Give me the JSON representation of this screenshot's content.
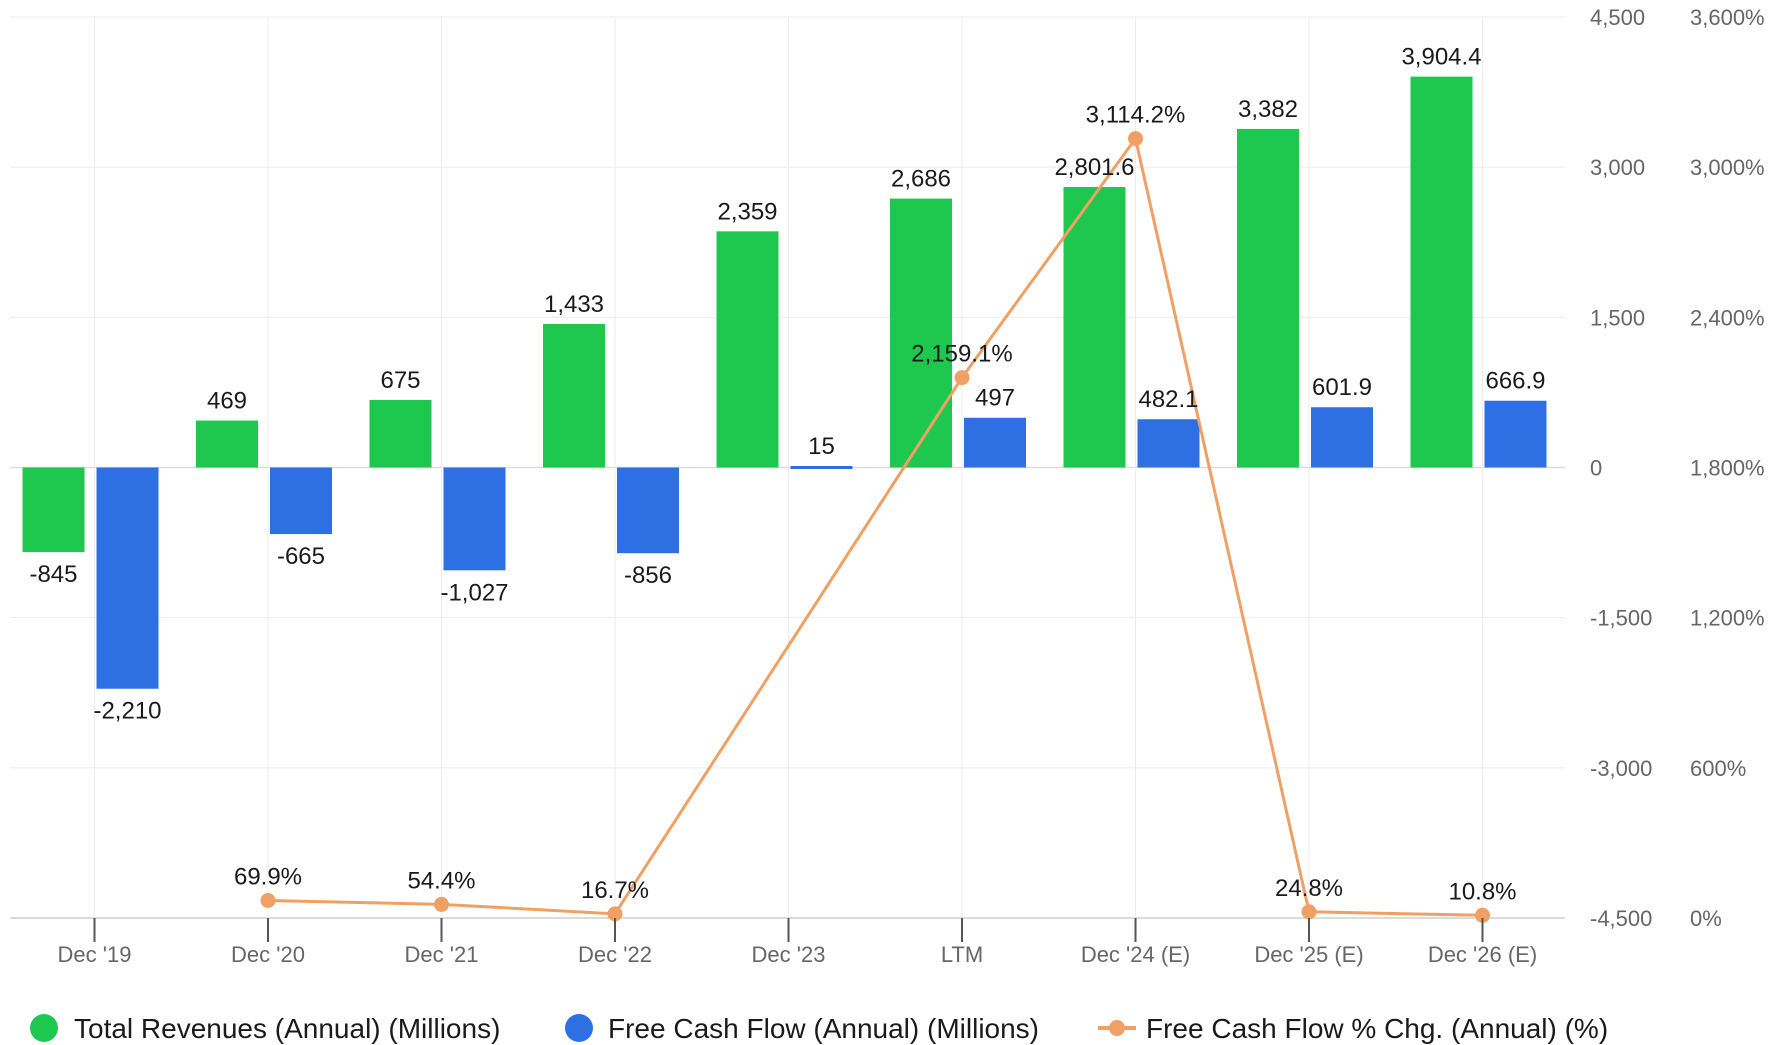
{
  "chart_data": {
    "type": "bar",
    "categories": [
      "Dec '19",
      "Dec '20",
      "Dec '21",
      "Dec '22",
      "Dec '23",
      "LTM",
      "Dec '24 (E)",
      "Dec '25 (E)",
      "Dec '26 (E)"
    ],
    "series": [
      {
        "name": "Total Revenues (Annual) (Millions)",
        "type": "bar",
        "axis": "left",
        "color": "#1ec84e",
        "values": [
          -845,
          469,
          675,
          1433,
          2359,
          2686,
          2801.6,
          3382,
          3904.4
        ],
        "labels": [
          "-845",
          "469",
          "675",
          "1,433",
          "2,359",
          "2,686",
          "2,801.6",
          "3,382",
          "3,904.4"
        ]
      },
      {
        "name": "Free Cash Flow (Annual) (Millions)",
        "type": "bar",
        "axis": "left",
        "color": "#2f6fe4",
        "values": [
          -2210,
          -665,
          -1027,
          -856,
          15,
          497,
          482.1,
          601.9,
          666.9
        ],
        "labels": [
          "-2,210",
          "-665",
          "-1,027",
          "-856",
          "15",
          "497",
          "482.1",
          "601.9",
          "666.9"
        ]
      },
      {
        "name": "Free Cash Flow % Chg. (Annual) (%)",
        "type": "line",
        "axis": "right",
        "color": "#f0a064",
        "values": [
          null,
          69.9,
          54.4,
          16.7,
          null,
          2159.1,
          3114.2,
          24.8,
          10.8
        ],
        "labels": [
          "",
          "69.9%",
          "54.4%",
          "16.7%",
          "",
          "2,159.1%",
          "3,114.2%",
          "24.8%",
          "10.8%"
        ]
      }
    ],
    "y_left": {
      "range": [
        -4500,
        4500
      ],
      "ticks": [
        4500,
        3000,
        1500,
        0,
        -1500,
        -3000,
        -4500
      ],
      "tick_labels": [
        "4,500",
        "3,000",
        "1,500",
        "0",
        "-1,500",
        "-3,000",
        "-4,500"
      ]
    },
    "y_right": {
      "range": [
        0,
        3600
      ],
      "ticks": [
        3600,
        3000,
        2400,
        1800,
        1200,
        600,
        0
      ],
      "tick_labels": [
        "3,600%",
        "3,000%",
        "2,400%",
        "1,800%",
        "1,200%",
        "600%",
        "0%"
      ]
    },
    "grid": true,
    "legend": "bottom"
  }
}
